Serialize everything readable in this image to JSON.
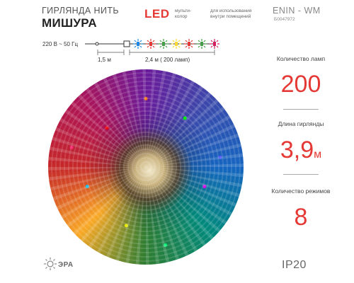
{
  "header": {
    "title_line1": "ГИРЛЯНДА НИТЬ",
    "title_line2": "МИШУРА",
    "led": "LED",
    "led_note": "мульти-колор",
    "usage": "для использования внутри помещений",
    "model": "ENIN - WM",
    "article": "Б0047972"
  },
  "wire": {
    "voltage": "220 В ~ 50 Гц",
    "cord_length": "1,5 м",
    "lamp_section": "2,4  м ( 200 ламп)",
    "bulb_colors": [
      "#1e88e5",
      "#e53935",
      "#43a047",
      "#fdd835",
      "#e53935",
      "#43a047",
      "#d81b60"
    ]
  },
  "specs": {
    "lamps_label": "Количество ламп",
    "lamps_value": "200",
    "length_label": "Длина гирлянды",
    "length_value": "3,9",
    "length_unit": "м",
    "modes_label": "Количество режимов",
    "modes_value": "8",
    "ip_rating": "IP20"
  },
  "brand": {
    "name": "ЭРА"
  },
  "colors": {
    "accent_red": "#e53935"
  }
}
